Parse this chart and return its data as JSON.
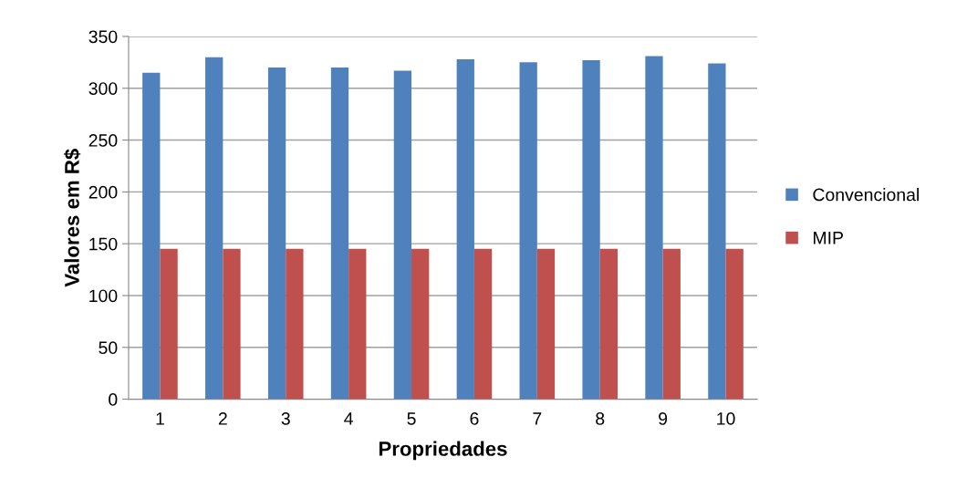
{
  "chart_data": {
    "type": "bar",
    "xlabel": "Propriedades",
    "ylabel": "Valores em R$",
    "categories": [
      "1",
      "2",
      "3",
      "4",
      "5",
      "6",
      "7",
      "8",
      "9",
      "10"
    ],
    "series": [
      {
        "name": "Convencional",
        "color": "#4f81bd",
        "values": [
          315,
          330,
          320,
          320,
          317,
          328,
          325,
          327,
          331,
          324
        ]
      },
      {
        "name": "MIP",
        "color": "#c0504d",
        "values": [
          145,
          145,
          145,
          145,
          145,
          145,
          145,
          145,
          145,
          145
        ]
      }
    ],
    "ylim": [
      0,
      350
    ],
    "yticks": [
      0,
      50,
      100,
      150,
      200,
      250,
      300,
      350
    ],
    "grid": "y",
    "legend": "right"
  }
}
